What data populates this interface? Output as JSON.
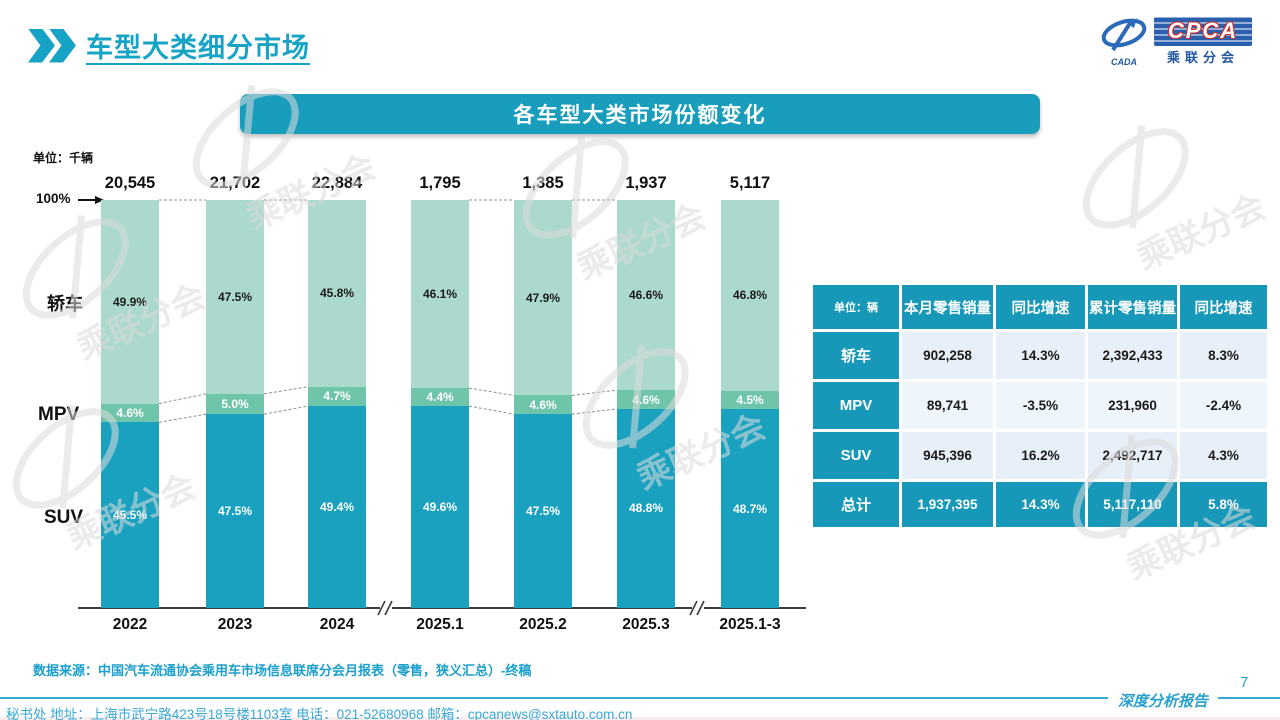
{
  "header": {
    "title": "车型大类细分市场",
    "logo": {
      "cada": "CADA",
      "cpca": "CPCA",
      "sub": "乘联分会"
    }
  },
  "banner": {
    "title": "各车型大类市场份额变化"
  },
  "chart": {
    "unit_label": "单位：千辆",
    "axis_100": "100%"
  },
  "chart_data": {
    "type": "bar",
    "stacked": true,
    "title": "各车型大类市场份额变化",
    "ylabel": "单位：千辆",
    "ylim": [
      0,
      100
    ],
    "grid": false,
    "categories": [
      "2022",
      "2023",
      "2024",
      "2025.1",
      "2025.2",
      "2025.3",
      "2025.1-3"
    ],
    "totals": [
      "20,545",
      "21,702",
      "22,884",
      "1,795",
      "1,385",
      "1,937",
      "5,117"
    ],
    "series": [
      {
        "name": "轿车",
        "values": [
          49.9,
          47.5,
          45.8,
          46.1,
          47.9,
          46.6,
          46.8
        ],
        "color": "#abd9ce",
        "label_color": "#1b1b1b"
      },
      {
        "name": "MPV",
        "values": [
          4.6,
          5.0,
          4.7,
          4.4,
          4.6,
          4.6,
          4.5
        ],
        "color": "#6fc5a9",
        "label_color": "#ffffff"
      },
      {
        "name": "SUV",
        "values": [
          45.5,
          47.5,
          49.4,
          49.6,
          47.5,
          48.8,
          48.7
        ],
        "color": "#1ba1c0",
        "label_color": "#ffffff"
      }
    ],
    "axis_break_after": [
      "2024",
      "2025.3"
    ]
  },
  "table": {
    "unit_header": "单位：辆",
    "headers": [
      "本月零售销量",
      "同比增速",
      "累计零售销量",
      "同比增速"
    ],
    "rows": [
      {
        "label": "轿车",
        "cells": [
          "902,258",
          "14.3%",
          "2,392,433",
          "8.3%"
        ],
        "total": false
      },
      {
        "label": "MPV",
        "cells": [
          "89,741",
          "-3.5%",
          "231,960",
          "-2.4%"
        ],
        "total": false
      },
      {
        "label": "SUV",
        "cells": [
          "945,396",
          "16.2%",
          "2,492,717",
          "4.3%"
        ],
        "total": false
      },
      {
        "label": "总计",
        "cells": [
          "1,937,395",
          "14.3%",
          "5,117,110",
          "5.8%"
        ],
        "total": true
      }
    ]
  },
  "source": {
    "text": "数据来源：中国汽车流通协会乘用车市场信息联席分会月报表（零售，狭义汇总）-终稿"
  },
  "footer": {
    "contact": "秘书处  地址：上海市武宁路423号18号楼1103室 电话：021-52680968  邮箱：cpcanews@sxtauto.com.cn",
    "report_label": "深度分析报告",
    "page": "7"
  },
  "decorations": {
    "watermark_text": "乘联分会"
  },
  "colors": {
    "accent": "#17a3c6",
    "banner": "#189dbc",
    "table_teal": "#1798b8",
    "sedan": "#abd9ce",
    "mpv": "#6fc5a9",
    "suv": "#1ba1c0",
    "footer_blue": "#3aa7d7",
    "logo_blue": "#21589f",
    "logo_red": "#cf2e2e"
  }
}
